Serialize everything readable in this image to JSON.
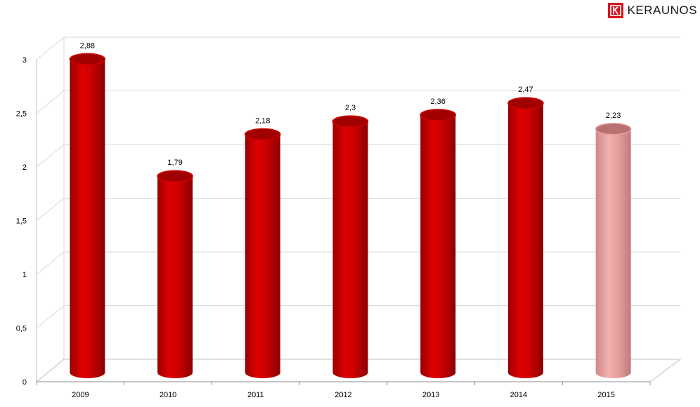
{
  "brand": {
    "name": "KERAUNOS",
    "color": "#d8141c"
  },
  "chart_data": {
    "type": "bar",
    "style": "3d-cylinder",
    "categories": [
      "2009",
      "2010",
      "2011",
      "2012",
      "2013",
      "2014",
      "2015"
    ],
    "values": [
      2.88,
      1.79,
      2.18,
      2.3,
      2.36,
      2.47,
      2.23
    ],
    "value_labels": [
      "2,88",
      "1,79",
      "2,18",
      "2,3",
      "2,36",
      "2,47",
      "2,23"
    ],
    "bar_colors": [
      "#c80000",
      "#c80000",
      "#c80000",
      "#c80000",
      "#c80000",
      "#c80000",
      "#e8a0a0"
    ],
    "ylim": [
      0,
      3
    ],
    "y_ticks": [
      0,
      0.5,
      1,
      1.5,
      2,
      2.5,
      3
    ],
    "y_tick_labels": [
      "0",
      "0,5",
      "1",
      "1,5",
      "2",
      "2,5",
      "3"
    ],
    "grid": true,
    "title": "",
    "xlabel": "",
    "ylabel": ""
  }
}
